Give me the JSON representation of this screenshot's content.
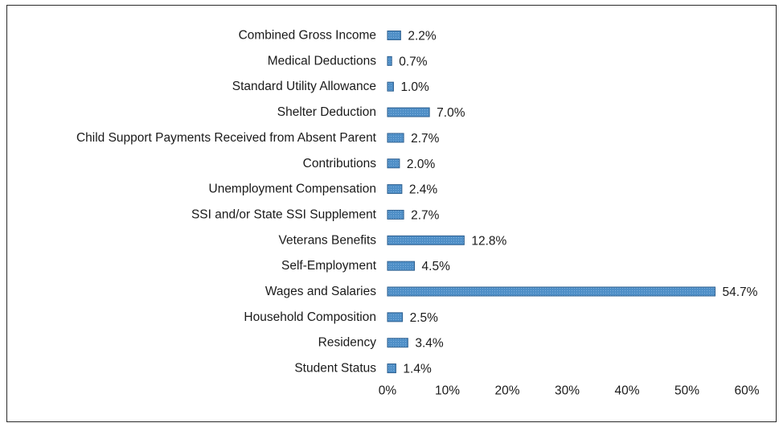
{
  "chart_data": {
    "type": "bar",
    "orientation": "horizontal",
    "categories": [
      "Combined Gross Income",
      "Medical Deductions",
      "Standard Utility Allowance",
      "Shelter Deduction",
      "Child Support Payments Received from Absent Parent",
      "Contributions",
      "Unemployment Compensation",
      "SSI and/or State SSI Supplement",
      "Veterans Benefits",
      "Self-Employment",
      "Wages and Salaries",
      "Household Composition",
      "Residency",
      "Student Status"
    ],
    "values": [
      2.2,
      0.7,
      1.0,
      7.0,
      2.7,
      2.0,
      2.4,
      2.7,
      12.8,
      4.5,
      54.7,
      2.5,
      3.4,
      1.4
    ],
    "value_labels": [
      "2.2%",
      "0.7%",
      "1.0%",
      "7.0%",
      "2.7%",
      "2.0%",
      "2.4%",
      "2.7%",
      "12.8%",
      "4.5%",
      "54.7%",
      "2.5%",
      "3.4%",
      "1.4%"
    ],
    "x_ticks": [
      "0%",
      "10%",
      "20%",
      "30%",
      "40%",
      "50%",
      "60%"
    ],
    "xlim": [
      0,
      60
    ],
    "grid": false,
    "bar_color": "#4f8fc7",
    "bar_edge_color": "#2d5f8f",
    "title": "",
    "xlabel": "",
    "ylabel": ""
  }
}
